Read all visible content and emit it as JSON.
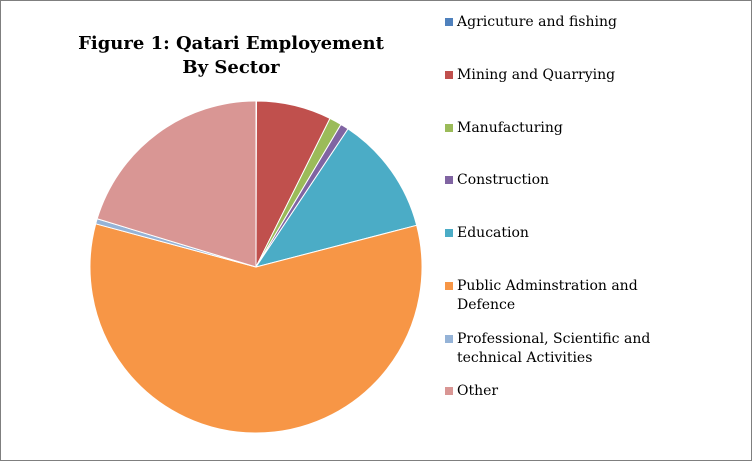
{
  "chart_data": {
    "type": "pie",
    "title": "Figure 1: Qatari Employement By Sector",
    "title_lines": [
      "Figure 1: Qatari Employement",
      "By Sector"
    ],
    "legend_position": "right",
    "slices": [
      {
        "label": "Agricuture and fishing",
        "value": 0.05,
        "color": "#4F81BD"
      },
      {
        "label": "Mining and Quarrying",
        "value": 7.3,
        "color": "#C0504D"
      },
      {
        "label": "Manufacturing",
        "value": 1.2,
        "color": "#9BBB59"
      },
      {
        "label": "Construction",
        "value": 0.8,
        "color": "#8064A2"
      },
      {
        "label": "Education",
        "value": 11.6,
        "color": "#4BACC6"
      },
      {
        "label": "Public Adminstration and Defence",
        "value": 58.2,
        "color": "#F79646"
      },
      {
        "label": "Professional, Scientific and technical Activities",
        "value": 0.5,
        "color": "#95B3D7"
      },
      {
        "label": "Other",
        "value": 20.3,
        "color": "#D99694"
      }
    ]
  },
  "legend": {
    "items": [
      {
        "lines": [
          "Agricuture and fishing"
        ]
      },
      {
        "lines": [
          "Mining and Quarrying"
        ]
      },
      {
        "lines": [
          "Manufacturing"
        ]
      },
      {
        "lines": [
          "Construction"
        ]
      },
      {
        "lines": [
          "Education"
        ]
      },
      {
        "lines": [
          "Public Adminstration and",
          "Defence"
        ]
      },
      {
        "lines": [
          "Professional, Scientific and",
          "technical Activities"
        ]
      },
      {
        "lines": [
          "Other"
        ]
      }
    ]
  }
}
